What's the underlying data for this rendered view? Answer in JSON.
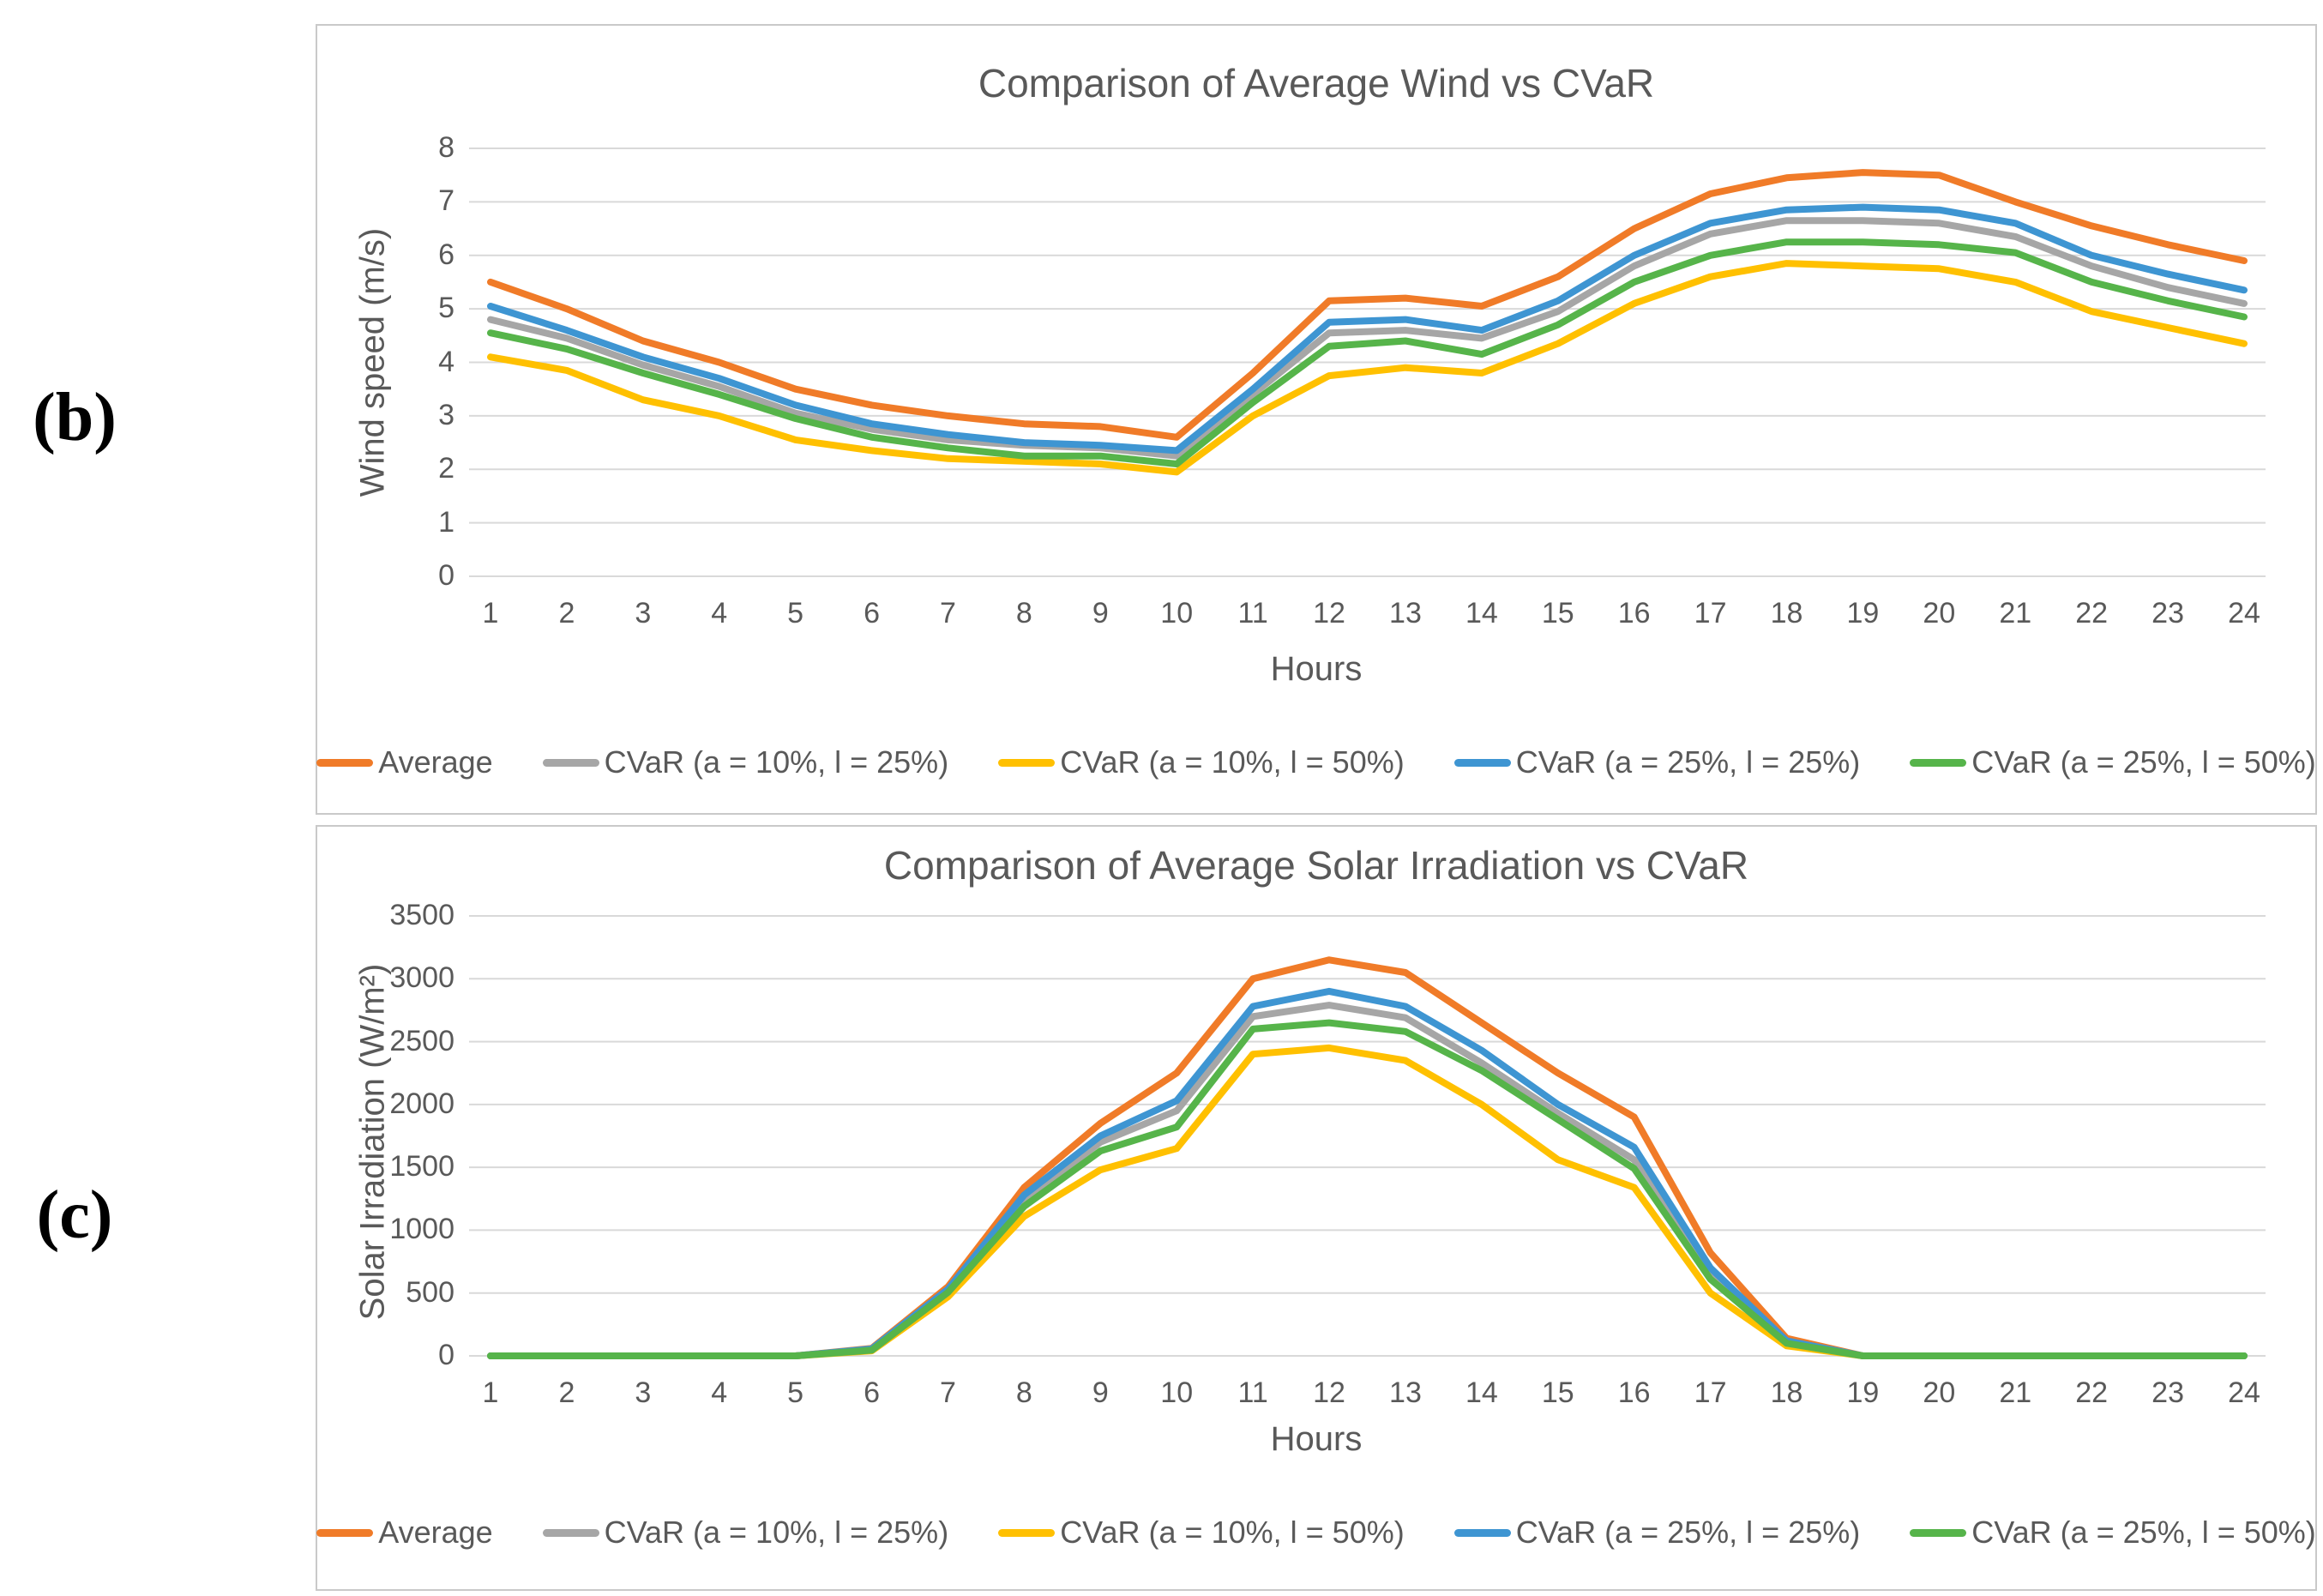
{
  "page": {
    "label_b": "(b)",
    "label_c": "(c)"
  },
  "colors": {
    "average": "#F07B28",
    "cvar_10_25": "#A6A6A6",
    "cvar_10_50": "#FFC000",
    "cvar_25_25": "#3E95D2",
    "cvar_25_50": "#56B44A",
    "gridline": "#D9D9D9",
    "text": "#595959"
  },
  "chart_data": [
    {
      "type": "line",
      "title": "Comparison of Average Wind vs CVaR",
      "xlabel": "Hours",
      "ylabel": "Wind speed (m/s)",
      "x": [
        1,
        2,
        3,
        4,
        5,
        6,
        7,
        8,
        9,
        10,
        11,
        12,
        13,
        14,
        15,
        16,
        17,
        18,
        19,
        20,
        21,
        22,
        23,
        24
      ],
      "ylim": [
        0,
        8
      ],
      "ytick_step": 1,
      "grid": true,
      "legend_position": "bottom",
      "series": [
        {
          "name": "Average",
          "color": "#F07B28",
          "values": [
            5.5,
            5.0,
            4.4,
            4.0,
            3.5,
            3.2,
            3.0,
            2.85,
            2.8,
            2.6,
            3.8,
            5.15,
            5.2,
            5.05,
            5.6,
            6.5,
            7.15,
            7.45,
            7.55,
            7.5,
            7.0,
            6.55,
            6.2,
            5.9
          ]
        },
        {
          "name": "CVaR (a = 10%, l = 25%)",
          "color": "#A6A6A6",
          "values": [
            4.8,
            4.45,
            3.95,
            3.55,
            3.05,
            2.75,
            2.55,
            2.45,
            2.4,
            2.25,
            3.4,
            4.55,
            4.6,
            4.45,
            4.95,
            5.8,
            6.4,
            6.65,
            6.65,
            6.6,
            6.35,
            5.8,
            5.4,
            5.1
          ]
        },
        {
          "name": "CVaR (a = 10%, l = 50%)",
          "color": "#FFC000",
          "values": [
            4.1,
            3.85,
            3.3,
            3.0,
            2.55,
            2.35,
            2.2,
            2.15,
            2.1,
            1.95,
            3.0,
            3.75,
            3.9,
            3.8,
            4.35,
            5.1,
            5.6,
            5.85,
            5.8,
            5.75,
            5.5,
            4.95,
            4.65,
            4.35
          ]
        },
        {
          "name": "CVaR (a = 25%, l = 25%)",
          "color": "#3E95D2",
          "values": [
            5.05,
            4.6,
            4.1,
            3.7,
            3.2,
            2.85,
            2.65,
            2.5,
            2.45,
            2.35,
            3.5,
            4.75,
            4.8,
            4.6,
            5.15,
            6.0,
            6.6,
            6.85,
            6.9,
            6.85,
            6.6,
            6.0,
            5.65,
            5.35
          ]
        },
        {
          "name": "CVaR (a = 25%, l = 50%)",
          "color": "#56B44A",
          "values": [
            4.55,
            4.25,
            3.8,
            3.4,
            2.95,
            2.6,
            2.4,
            2.25,
            2.25,
            2.1,
            3.25,
            4.3,
            4.4,
            4.15,
            4.7,
            5.5,
            6.0,
            6.25,
            6.25,
            6.2,
            6.05,
            5.5,
            5.15,
            4.85
          ]
        }
      ]
    },
    {
      "type": "line",
      "title": "Comparison of Average Solar Irradiation vs CVaR",
      "xlabel": "Hours",
      "ylabel": "Solar Irradiation (W/m²)",
      "x": [
        1,
        2,
        3,
        4,
        5,
        6,
        7,
        8,
        9,
        10,
        11,
        12,
        13,
        14,
        15,
        16,
        17,
        18,
        19,
        20,
        21,
        22,
        23,
        24
      ],
      "ylim": [
        0,
        3500
      ],
      "ytick_step": 500,
      "grid": true,
      "legend_position": "bottom",
      "series": [
        {
          "name": "Average",
          "color": "#F07B28",
          "values": [
            0,
            0,
            0,
            0,
            0,
            60,
            550,
            1340,
            1850,
            2250,
            3000,
            3150,
            3050,
            2650,
            2250,
            1900,
            820,
            140,
            0,
            0,
            0,
            0,
            0,
            0
          ]
        },
        {
          "name": "CVaR (a = 10%, l = 25%)",
          "color": "#A6A6A6",
          "values": [
            0,
            0,
            0,
            0,
            0,
            50,
            520,
            1240,
            1700,
            1950,
            2700,
            2790,
            2690,
            2330,
            1930,
            1560,
            650,
            110,
            0,
            0,
            0,
            0,
            0,
            0
          ]
        },
        {
          "name": "CVaR (a = 10%, l = 50%)",
          "color": "#FFC000",
          "values": [
            0,
            0,
            0,
            0,
            0,
            40,
            470,
            1110,
            1480,
            1650,
            2400,
            2450,
            2350,
            2000,
            1560,
            1340,
            500,
            80,
            0,
            0,
            0,
            0,
            0,
            0
          ]
        },
        {
          "name": "CVaR (a = 25%, l = 25%)",
          "color": "#3E95D2",
          "values": [
            0,
            0,
            0,
            0,
            0,
            55,
            530,
            1280,
            1750,
            2030,
            2780,
            2900,
            2780,
            2430,
            2000,
            1660,
            700,
            120,
            0,
            0,
            0,
            0,
            0,
            0
          ]
        },
        {
          "name": "CVaR (a = 25%, l = 50%)",
          "color": "#56B44A",
          "values": [
            0,
            0,
            0,
            0,
            0,
            45,
            505,
            1190,
            1630,
            1820,
            2600,
            2650,
            2580,
            2270,
            1880,
            1490,
            610,
            100,
            0,
            0,
            0,
            0,
            0,
            0
          ]
        }
      ]
    }
  ]
}
